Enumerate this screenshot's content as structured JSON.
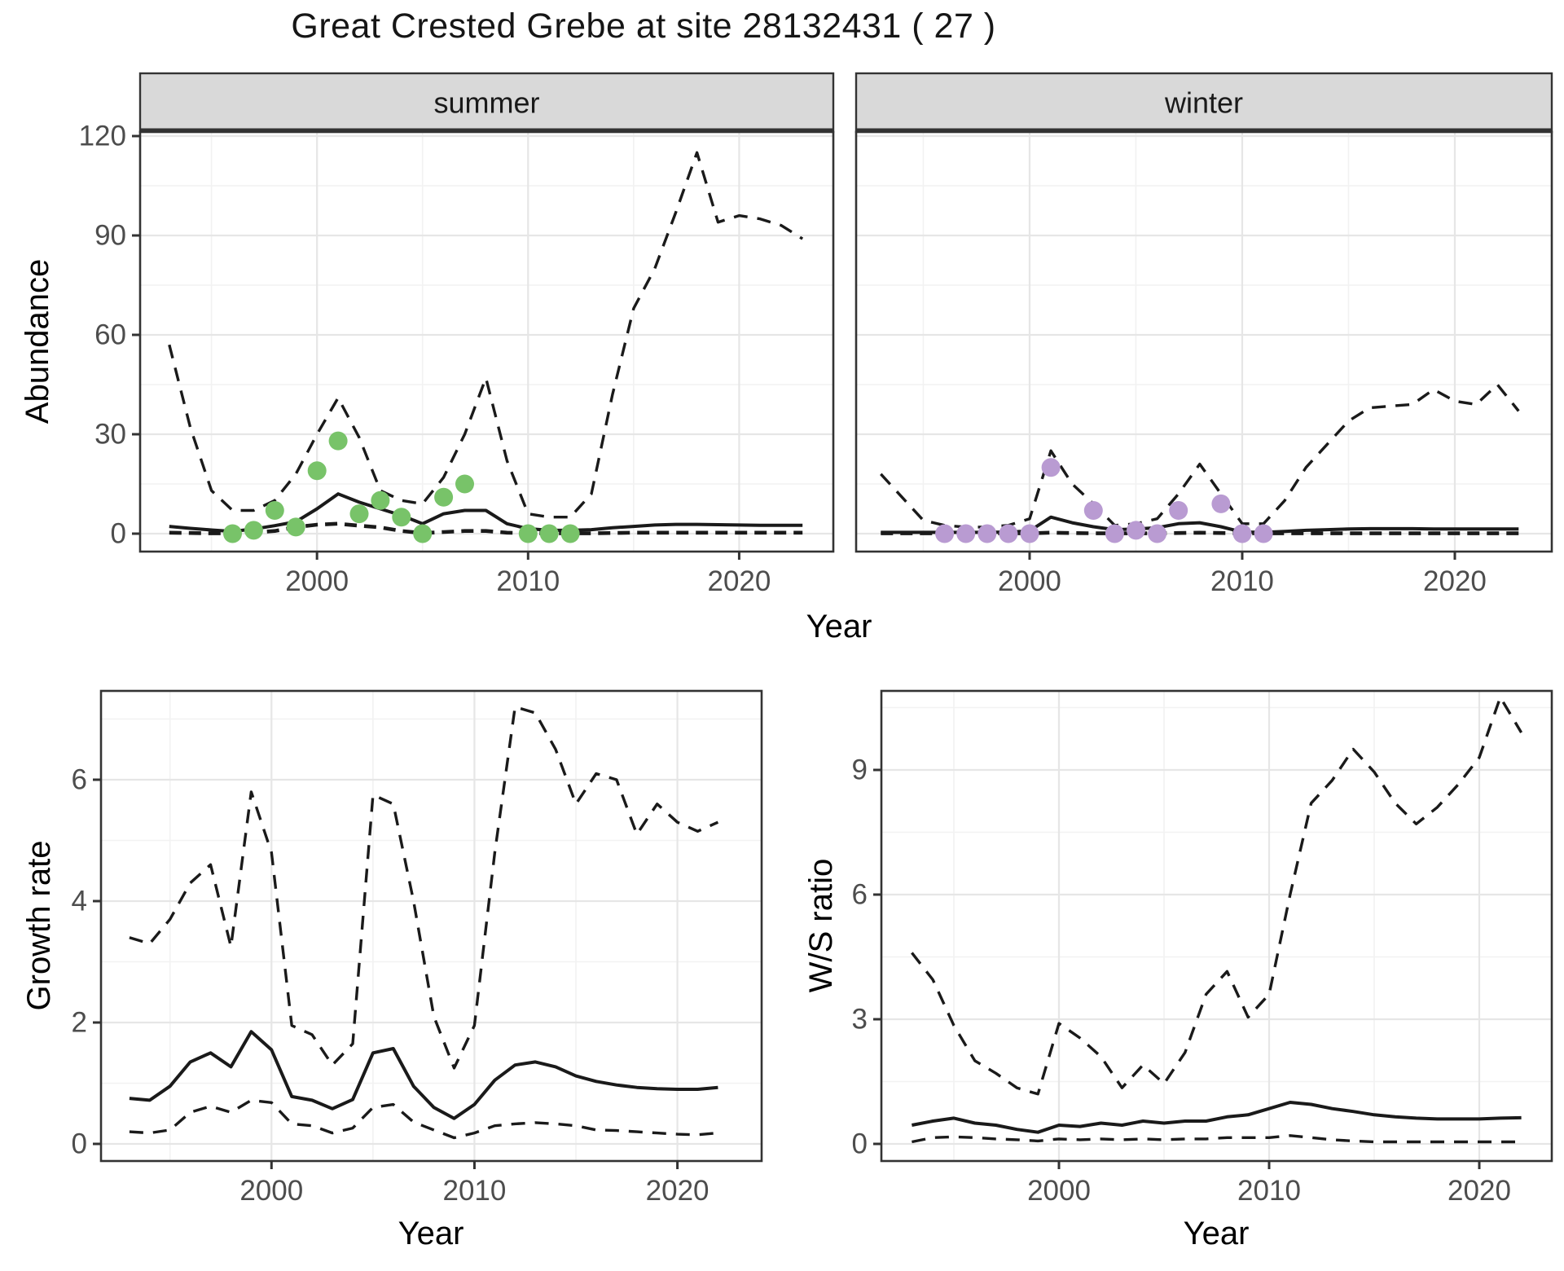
{
  "title": "Great Crested Grebe at site 28132431 ( 27 )",
  "shared_xlabel": "Year",
  "colors": {
    "line": "#1a1a1a",
    "grid_major": "#e6e6e6",
    "grid_minor": "#f2f2f2",
    "panel_border": "#333333",
    "strip_fill": "#d9d9d9",
    "tick_text": "#4d4d4d",
    "observed_summer": "#78c369",
    "observed_winter": "#b99bd2"
  },
  "chart_data": [
    {
      "id": "abundance_summer",
      "type": "line",
      "facet": "summer",
      "ylabel": "Abundance",
      "xlabel": "Year",
      "ylim": [
        0,
        120
      ],
      "yticks": [
        0,
        30,
        60,
        90,
        120
      ],
      "xticks": [
        2000,
        2010,
        2020
      ],
      "x": [
        1993,
        1994,
        1995,
        1996,
        1997,
        1998,
        1999,
        2000,
        2001,
        2002,
        2003,
        2004,
        2005,
        2006,
        2007,
        2008,
        2009,
        2010,
        2011,
        2012,
        2013,
        2014,
        2015,
        2016,
        2017,
        2018,
        2019,
        2020,
        2021,
        2022,
        2023
      ],
      "series": [
        {
          "name": "upper_ci",
          "style": "dashed",
          "values": [
            57,
            32,
            13,
            7,
            7,
            10,
            18,
            30,
            41,
            29,
            13,
            10,
            9,
            17,
            30,
            47,
            22,
            6,
            5,
            5,
            12,
            42,
            68,
            80,
            97,
            115,
            94,
            96,
            95,
            93,
            89
          ]
        },
        {
          "name": "median",
          "style": "solid",
          "values": [
            2.2,
            1.6,
            1.1,
            0.7,
            1.4,
            2.4,
            3.6,
            7.5,
            12,
            9.5,
            7.5,
            5.5,
            3,
            6,
            7,
            7,
            3,
            1.5,
            1,
            1,
            1.2,
            1.8,
            2.2,
            2.6,
            2.8,
            2.8,
            2.7,
            2.6,
            2.5,
            2.5,
            2.5
          ]
        },
        {
          "name": "lower_ci",
          "style": "dashed-heavy",
          "values": [
            0.3,
            0.2,
            0.1,
            0.1,
            0.3,
            0.8,
            2,
            2.7,
            3,
            2.4,
            1.9,
            0.8,
            0.2,
            0.5,
            0.8,
            0.8,
            0.3,
            0.1,
            0.1,
            0.1,
            0.1,
            0.2,
            0.3,
            0.3,
            0.3,
            0.3,
            0.3,
            0.3,
            0.3,
            0.3,
            0.3
          ]
        }
      ],
      "observed_points": {
        "name": "observed counts (summer)",
        "color": "#78c369",
        "x": [
          1996,
          1997,
          1998,
          1999,
          2000,
          2001,
          2002,
          2003,
          2004,
          2005,
          2006,
          2007,
          2010,
          2011,
          2012
        ],
        "values": [
          0,
          1,
          7,
          2,
          19,
          28,
          6,
          10,
          5,
          0,
          11,
          15,
          0,
          0,
          0
        ]
      }
    },
    {
      "id": "abundance_winter",
      "type": "line",
      "facet": "winter",
      "ylabel": "Abundance",
      "xlabel": "Year",
      "ylim": [
        0,
        120
      ],
      "yticks": [
        0,
        30,
        60,
        90,
        120
      ],
      "xticks": [
        2000,
        2010,
        2020
      ],
      "x": [
        1993,
        1994,
        1995,
        1996,
        1997,
        1998,
        1999,
        2000,
        2001,
        2002,
        2003,
        2004,
        2005,
        2006,
        2007,
        2008,
        2009,
        2010,
        2011,
        2012,
        2013,
        2014,
        2015,
        2016,
        2017,
        2018,
        2019,
        2020,
        2021,
        2022,
        2023
      ],
      "series": [
        {
          "name": "upper_ci",
          "style": "dashed",
          "values": [
            18,
            11,
            4,
            2.5,
            2,
            2,
            2.5,
            4.5,
            25,
            15,
            9,
            2.5,
            3,
            4.5,
            12,
            21,
            12,
            3,
            3,
            10,
            20,
            27,
            34,
            38,
            38.5,
            39,
            43.5,
            40,
            39,
            45,
            37
          ]
        },
        {
          "name": "median",
          "style": "solid",
          "values": [
            0.4,
            0.4,
            0.4,
            0.4,
            0.4,
            0.4,
            0.5,
            0.8,
            5,
            3.3,
            2.1,
            1.2,
            1.4,
            1.8,
            3,
            3.3,
            2.1,
            0.5,
            0.4,
            0.7,
            1,
            1.2,
            1.4,
            1.5,
            1.5,
            1.5,
            1.4,
            1.4,
            1.4,
            1.4,
            1.4
          ]
        },
        {
          "name": "lower_ci",
          "style": "dashed-heavy",
          "values": [
            0.1,
            0.1,
            0.1,
            0.1,
            0.1,
            0.1,
            0.1,
            0.1,
            0.3,
            0.2,
            0.1,
            0.1,
            0.1,
            0.1,
            0.2,
            0.3,
            0.2,
            0.1,
            0.1,
            0.1,
            0.1,
            0.1,
            0.1,
            0.1,
            0.1,
            0.1,
            0.1,
            0.1,
            0.1,
            0.1,
            0.1
          ]
        }
      ],
      "observed_points": {
        "name": "observed counts (winter)",
        "color": "#b99bd2",
        "x": [
          1996,
          1997,
          1998,
          1999,
          2000,
          2001,
          2003,
          2004,
          2005,
          2006,
          2007,
          2009,
          2010,
          2011
        ],
        "values": [
          0,
          0,
          0,
          0,
          0,
          20,
          7,
          0,
          1,
          0,
          7,
          9,
          0,
          0
        ]
      }
    },
    {
      "id": "growth_rate",
      "type": "line",
      "ylabel": "Growth rate",
      "xlabel": "Year",
      "ylim": [
        0,
        7.4
      ],
      "yticks": [
        0,
        2,
        4,
        6
      ],
      "xticks": [
        2000,
        2010,
        2020
      ],
      "x": [
        1993,
        1994,
        1995,
        1996,
        1997,
        1998,
        1999,
        2000,
        2001,
        2002,
        2003,
        2004,
        2005,
        2006,
        2007,
        2008,
        2009,
        2010,
        2011,
        2012,
        2013,
        2014,
        2015,
        2016,
        2017,
        2018,
        2019,
        2020,
        2021,
        2022
      ],
      "series": [
        {
          "name": "upper_ci",
          "style": "dashed",
          "values": [
            3.4,
            3.3,
            3.7,
            4.3,
            4.6,
            3.25,
            5.8,
            4.8,
            1.95,
            1.8,
            1.3,
            1.65,
            5.75,
            5.6,
            4.0,
            2.1,
            1.25,
            1.95,
            4.8,
            7.2,
            7.1,
            6.5,
            5.6,
            6.1,
            6.0,
            5.1,
            5.6,
            5.3,
            5.15,
            5.3
          ]
        },
        {
          "name": "median",
          "style": "solid",
          "values": [
            0.75,
            0.72,
            0.95,
            1.35,
            1.5,
            1.27,
            1.85,
            1.55,
            0.78,
            0.72,
            0.58,
            0.73,
            1.5,
            1.57,
            0.95,
            0.6,
            0.42,
            0.65,
            1.05,
            1.3,
            1.35,
            1.27,
            1.12,
            1.03,
            0.97,
            0.93,
            0.91,
            0.9,
            0.9,
            0.93
          ]
        },
        {
          "name": "lower_ci",
          "style": "dashed",
          "values": [
            0.2,
            0.18,
            0.23,
            0.52,
            0.62,
            0.52,
            0.72,
            0.68,
            0.33,
            0.3,
            0.18,
            0.26,
            0.6,
            0.65,
            0.36,
            0.23,
            0.1,
            0.18,
            0.3,
            0.33,
            0.35,
            0.33,
            0.3,
            0.23,
            0.22,
            0.2,
            0.18,
            0.16,
            0.15,
            0.18
          ]
        }
      ]
    },
    {
      "id": "ws_ratio",
      "type": "line",
      "ylabel": "W/S ratio",
      "xlabel": "Year",
      "ylim": [
        0,
        10.9
      ],
      "yticks": [
        0,
        3,
        6,
        9
      ],
      "xticks": [
        2000,
        2010,
        2020
      ],
      "x": [
        1993,
        1994,
        1995,
        1996,
        1997,
        1998,
        1999,
        2000,
        2001,
        2002,
        2003,
        2004,
        2005,
        2006,
        2007,
        2008,
        2009,
        2010,
        2011,
        2012,
        2013,
        2014,
        2015,
        2016,
        2017,
        2018,
        2019,
        2020,
        2021,
        2022
      ],
      "series": [
        {
          "name": "upper_ci",
          "style": "dashed",
          "values": [
            4.6,
            3.95,
            2.85,
            2.0,
            1.7,
            1.35,
            1.2,
            2.9,
            2.55,
            2.1,
            1.35,
            1.9,
            1.45,
            2.2,
            3.6,
            4.15,
            3.05,
            3.6,
            6.0,
            8.2,
            8.75,
            9.5,
            8.95,
            8.2,
            7.7,
            8.1,
            8.65,
            9.3,
            10.75,
            9.9
          ]
        },
        {
          "name": "median",
          "style": "solid",
          "values": [
            0.45,
            0.55,
            0.62,
            0.5,
            0.45,
            0.35,
            0.28,
            0.45,
            0.42,
            0.5,
            0.45,
            0.55,
            0.5,
            0.55,
            0.55,
            0.65,
            0.7,
            0.85,
            1.0,
            0.95,
            0.85,
            0.78,
            0.7,
            0.65,
            0.62,
            0.6,
            0.6,
            0.6,
            0.62,
            0.63
          ]
        },
        {
          "name": "lower_ci",
          "style": "dashed",
          "values": [
            0.05,
            0.15,
            0.17,
            0.15,
            0.12,
            0.1,
            0.07,
            0.12,
            0.1,
            0.12,
            0.1,
            0.12,
            0.1,
            0.12,
            0.12,
            0.15,
            0.15,
            0.15,
            0.2,
            0.15,
            0.1,
            0.07,
            0.05,
            0.05,
            0.05,
            0.05,
            0.05,
            0.05,
            0.05,
            0.05
          ]
        }
      ]
    }
  ]
}
